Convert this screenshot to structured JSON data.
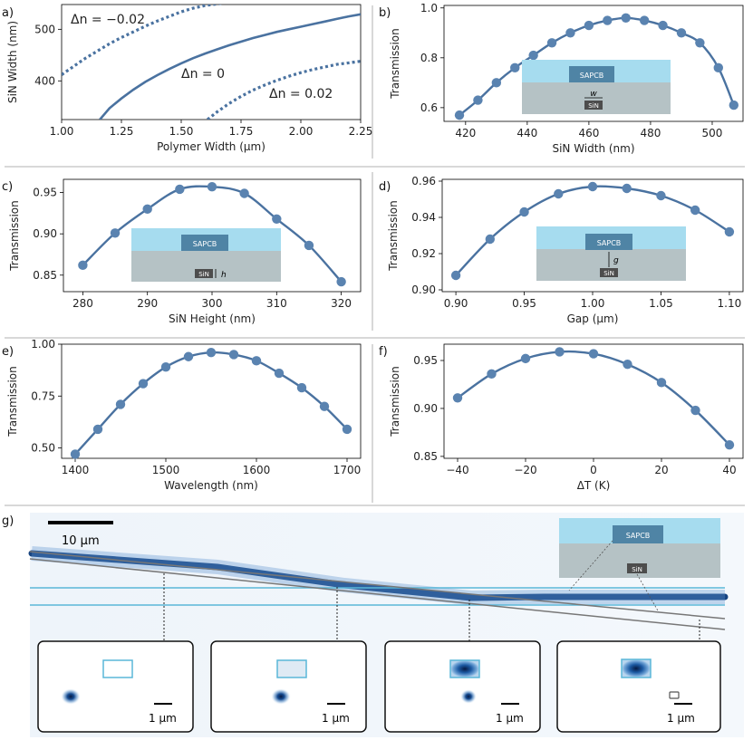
{
  "panel_letters": [
    "a)",
    "b)",
    "c)",
    "d)",
    "e)",
    "f)",
    "g)"
  ],
  "colors": {
    "line": "#4a72a0",
    "dot": "#5a83b0",
    "cladding": "#a6dcef",
    "substrate": "#b5c2c5",
    "box": "#4f84a5",
    "sin": "#4d4d4d"
  },
  "inset_labels": {
    "sapcb": "SAPCB",
    "sin": "SiN",
    "w": "w",
    "h": "h",
    "g": "g"
  },
  "chart_data": [
    {
      "id": "a",
      "type": "line",
      "xlabel": "Polymer Width (μm)",
      "ylabel": "SiN Width (nm)",
      "xlim": [
        1.0,
        2.25
      ],
      "ylim": [
        325,
        548
      ],
      "xticks": [
        1.0,
        1.25,
        1.5,
        1.75,
        2.0,
        2.25
      ],
      "xtick_labels": [
        "1.00",
        "1.25",
        "1.50",
        "1.75",
        "2.00",
        "2.25"
      ],
      "yticks": [
        400,
        500
      ],
      "ytick_labels": [
        "400",
        "500"
      ],
      "series": [
        {
          "name": "Δn = −0.02",
          "style": "dotted",
          "x": [
            1.0,
            1.05,
            1.1,
            1.15,
            1.2,
            1.25,
            1.3,
            1.35,
            1.4,
            1.45,
            1.5,
            1.55,
            1.6,
            1.65,
            1.7
          ],
          "y": [
            412,
            428,
            444,
            458,
            472,
            484,
            495,
            506,
            516,
            525,
            534,
            541,
            546,
            549,
            552
          ]
        },
        {
          "name": "Δn = 0",
          "style": "solid",
          "x": [
            1.16,
            1.2,
            1.25,
            1.3,
            1.35,
            1.4,
            1.45,
            1.5,
            1.55,
            1.6,
            1.65,
            1.7,
            1.75,
            1.8,
            1.85,
            1.9,
            1.95,
            2.0,
            2.05,
            2.1,
            2.15,
            2.2,
            2.25
          ],
          "y": [
            325,
            347,
            366,
            383,
            398,
            411,
            423,
            434,
            444,
            453,
            461,
            469,
            476,
            483,
            489,
            495,
            500,
            505,
            510,
            515,
            520,
            525,
            529
          ]
        },
        {
          "name": "Δn = 0.02",
          "style": "dotted",
          "x": [
            1.61,
            1.65,
            1.7,
            1.75,
            1.8,
            1.85,
            1.9,
            1.95,
            2.0,
            2.05,
            2.1,
            2.15,
            2.2,
            2.25
          ],
          "y": [
            325,
            340,
            356,
            370,
            382,
            392,
            401,
            409,
            416,
            422,
            427,
            432,
            435,
            438
          ]
        }
      ],
      "annotations": [
        "Δn = −0.02",
        "Δn = 0",
        "Δn = 0.02"
      ]
    },
    {
      "id": "b",
      "type": "line",
      "markers": true,
      "xlabel": "SiN Width (nm)",
      "ylabel": "Transmission",
      "xlim": [
        413,
        510
      ],
      "ylim": [
        0.545,
        1.01
      ],
      "xticks": [
        420,
        440,
        460,
        480,
        500
      ],
      "xtick_labels": [
        "420",
        "440",
        "460",
        "480",
        "500"
      ],
      "yticks": [
        0.6,
        0.8,
        1.0
      ],
      "ytick_labels": [
        "0.6",
        "0.8",
        "1.0"
      ],
      "x": [
        418,
        424,
        430,
        436,
        442,
        448,
        454,
        460,
        466,
        472,
        478,
        484,
        490,
        496,
        502,
        507
      ],
      "y": [
        0.57,
        0.63,
        0.7,
        0.76,
        0.81,
        0.86,
        0.9,
        0.93,
        0.95,
        0.96,
        0.95,
        0.93,
        0.9,
        0.86,
        0.76,
        0.61
      ]
    },
    {
      "id": "c",
      "type": "line",
      "markers": true,
      "xlabel": "SiN Height (nm)",
      "ylabel": "Transmission",
      "xlim": [
        277,
        323
      ],
      "ylim": [
        0.83,
        0.966
      ],
      "xticks": [
        280,
        290,
        300,
        310,
        320
      ],
      "xtick_labels": [
        "280",
        "290",
        "300",
        "310",
        "320"
      ],
      "yticks": [
        0.85,
        0.9,
        0.95
      ],
      "ytick_labels": [
        "0.85",
        "0.90",
        "0.95"
      ],
      "x": [
        280,
        285,
        290,
        295,
        300,
        305,
        310,
        315,
        320
      ],
      "y": [
        0.862,
        0.901,
        0.93,
        0.954,
        0.957,
        0.949,
        0.918,
        0.886,
        0.842
      ]
    },
    {
      "id": "d",
      "type": "line",
      "markers": true,
      "xlabel": "Gap (μm)",
      "ylabel": "Transmission",
      "xlim": [
        0.89,
        1.11
      ],
      "ylim": [
        0.899,
        0.961
      ],
      "xticks": [
        0.9,
        0.95,
        1.0,
        1.05,
        1.1
      ],
      "xtick_labels": [
        "0.90",
        "0.95",
        "1.00",
        "1.05",
        "1.10"
      ],
      "yticks": [
        0.9,
        0.92,
        0.94,
        0.96
      ],
      "ytick_labels": [
        "0.90",
        "0.92",
        "0.94",
        "0.96"
      ],
      "x": [
        0.9,
        0.925,
        0.95,
        0.975,
        1.0,
        1.025,
        1.05,
        1.075,
        1.1
      ],
      "y": [
        0.908,
        0.928,
        0.943,
        0.953,
        0.957,
        0.956,
        0.952,
        0.944,
        0.932
      ]
    },
    {
      "id": "e",
      "type": "line",
      "markers": true,
      "xlabel": "Wavelength (nm)",
      "ylabel": "Transmission",
      "xlim": [
        1385,
        1715
      ],
      "ylim": [
        0.45,
        1.0
      ],
      "xticks": [
        1400,
        1500,
        1600,
        1700
      ],
      "xtick_labels": [
        "1400",
        "1500",
        "1600",
        "1700"
      ],
      "yticks": [
        0.5,
        0.75,
        1.0
      ],
      "ytick_labels": [
        "0.50",
        "0.75",
        "1.00"
      ],
      "x": [
        1400,
        1425,
        1450,
        1475,
        1500,
        1525,
        1550,
        1575,
        1600,
        1625,
        1650,
        1675,
        1700
      ],
      "y": [
        0.47,
        0.59,
        0.71,
        0.81,
        0.89,
        0.94,
        0.96,
        0.95,
        0.92,
        0.86,
        0.79,
        0.7,
        0.59
      ]
    },
    {
      "id": "f",
      "type": "line",
      "markers": true,
      "xlabel": "ΔT (K)",
      "ylabel": "Transmission",
      "xlim": [
        -44,
        44
      ],
      "ylim": [
        0.848,
        0.967
      ],
      "xticks": [
        -40,
        -20,
        0,
        20,
        40
      ],
      "xtick_labels": [
        "−40",
        "−20",
        "0",
        "20",
        "40"
      ],
      "yticks": [
        0.85,
        0.9,
        0.95
      ],
      "ytick_labels": [
        "0.85",
        "0.90",
        "0.95"
      ],
      "x": [
        -40,
        -30,
        -20,
        -10,
        0,
        10,
        20,
        30,
        40
      ],
      "y": [
        0.911,
        0.936,
        0.952,
        0.959,
        0.957,
        0.946,
        0.927,
        0.898,
        0.862
      ]
    }
  ],
  "panel_g": {
    "scale_bar_label": "10 μm",
    "inset_scale_label": "1 μm",
    "inset_count": 4
  }
}
